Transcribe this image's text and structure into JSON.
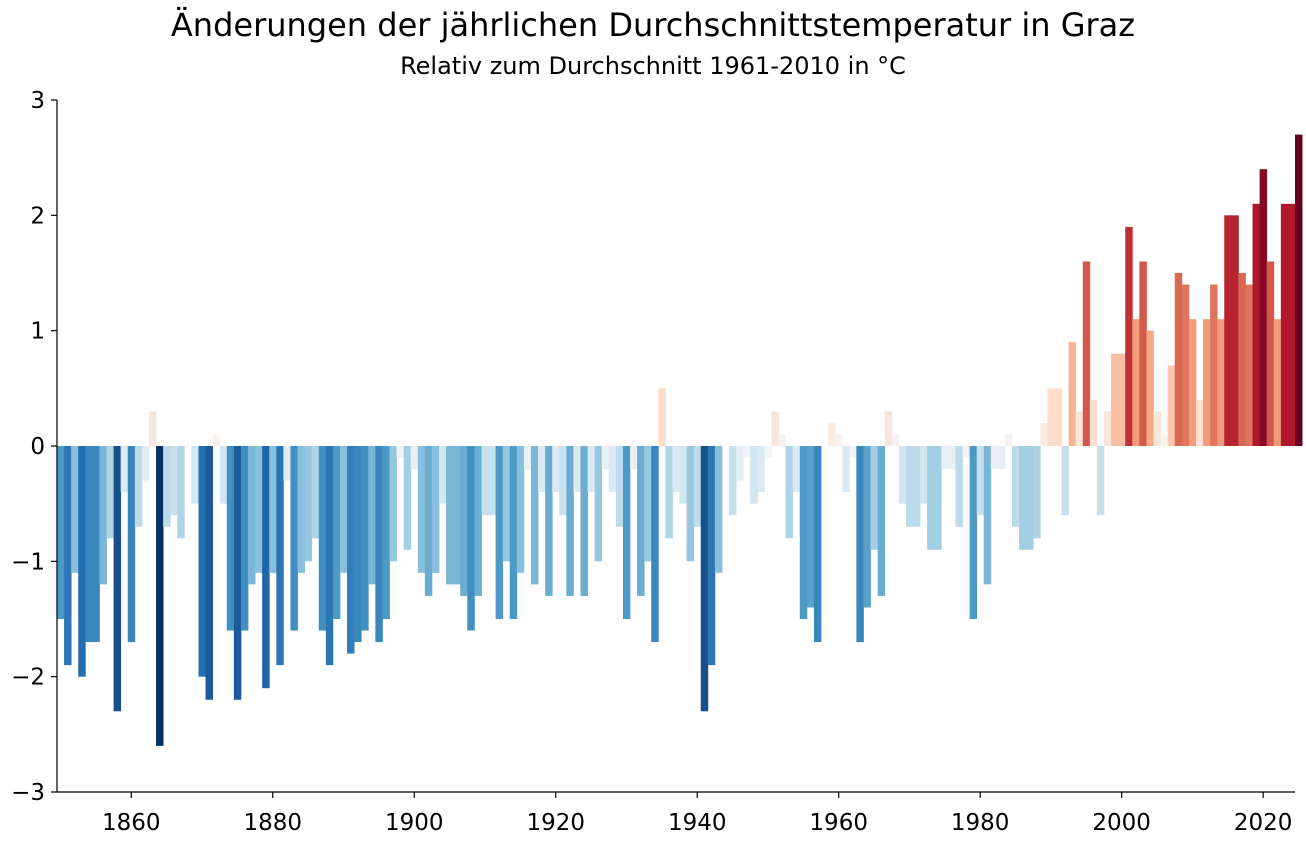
{
  "chart_data": {
    "type": "bar",
    "title": "Änderungen der jährlichen Durchschnittstemperatur in Graz",
    "subtitle": "Relativ zum Durchschnitt 1961-2010 in °C",
    "xlabel": "",
    "ylabel": "",
    "xlim": [
      1849.5,
      2024.5
    ],
    "ylim": [
      -3,
      3
    ],
    "grid": false,
    "x_ticks": [
      1860,
      1880,
      1900,
      1920,
      1940,
      1960,
      1980,
      2000,
      2020
    ],
    "y_ticks": [
      3,
      2,
      1,
      0,
      -1,
      -2,
      -3
    ],
    "y_tick_labels": [
      "3",
      "2",
      "1",
      "0",
      "−1",
      "−2",
      "−3"
    ],
    "color_scale": {
      "name": "RdBu_r",
      "vmin": -2.6,
      "vmax": 2.6,
      "stops": [
        "#053061",
        "#2166ac",
        "#4393c3",
        "#92c5de",
        "#d1e5f0",
        "#f7f7f7",
        "#fddbc7",
        "#f4a582",
        "#d6604d",
        "#b2182b",
        "#67001f"
      ]
    },
    "start_year": 1850,
    "values": [
      -1.5,
      -1.9,
      -1.1,
      -2.0,
      -1.7,
      -1.7,
      -1.2,
      -0.8,
      -2.3,
      -0.4,
      -1.7,
      -0.7,
      -0.3,
      0.3,
      -2.6,
      -0.7,
      -0.6,
      -0.8,
      0.0,
      -0.5,
      -2.0,
      -2.2,
      0.1,
      -0.5,
      -1.6,
      -2.2,
      -1.6,
      -1.2,
      -1.1,
      -2.1,
      -1.1,
      -1.9,
      -0.3,
      -1.6,
      -1.1,
      -1.0,
      -0.8,
      -1.6,
      -1.9,
      -1.5,
      -1.1,
      -1.8,
      -1.7,
      -1.6,
      -1.2,
      -1.7,
      -1.5,
      -1.0,
      -0.1,
      -0.9,
      -0.2,
      -1.1,
      -1.3,
      -1.1,
      -0.5,
      -1.2,
      -1.2,
      -1.3,
      -1.6,
      -1.3,
      -0.6,
      -0.6,
      -1.5,
      -1.0,
      -1.5,
      -1.1,
      -0.2,
      -1.2,
      -0.4,
      -1.3,
      -0.4,
      -0.6,
      -1.3,
      -0.4,
      -1.3,
      -0.4,
      -1.0,
      -0.2,
      -0.4,
      -0.7,
      -1.5,
      -0.2,
      -1.3,
      -1.0,
      -1.7,
      0.5,
      -0.8,
      -0.4,
      -0.5,
      -1.0,
      -0.7,
      -2.3,
      -1.9,
      -1.1,
      0.0,
      -0.6,
      -0.3,
      -0.1,
      -0.5,
      -0.4,
      -0.1,
      0.3,
      0.1,
      -0.8,
      -0.4,
      -1.5,
      -1.4,
      -1.7,
      0.0,
      0.2,
      0.1,
      -0.4,
      -0.1,
      -1.7,
      -1.4,
      -0.9,
      -1.3,
      0.3,
      0.1,
      -0.5,
      -0.7,
      -0.7,
      -0.5,
      -0.9,
      -0.9,
      -0.2,
      -0.2,
      -0.7,
      -0.1,
      -1.5,
      -0.6,
      -1.2,
      -0.2,
      -0.2,
      0.1,
      -0.7,
      -0.9,
      -0.9,
      -0.8,
      0.2,
      0.5,
      0.5,
      -0.6,
      0.9,
      0.3,
      1.6,
      0.4,
      -0.6,
      0.3,
      0.8,
      0.8,
      1.9,
      1.1,
      1.6,
      1.0,
      0.3,
      0.1,
      0.7,
      1.5,
      1.4,
      1.1,
      0.4,
      1.1,
      1.4,
      1.1,
      2.0,
      2.0,
      1.5,
      1.4,
      2.1,
      2.4,
      1.6,
      1.1,
      2.1,
      2.1,
      2.7
    ]
  }
}
